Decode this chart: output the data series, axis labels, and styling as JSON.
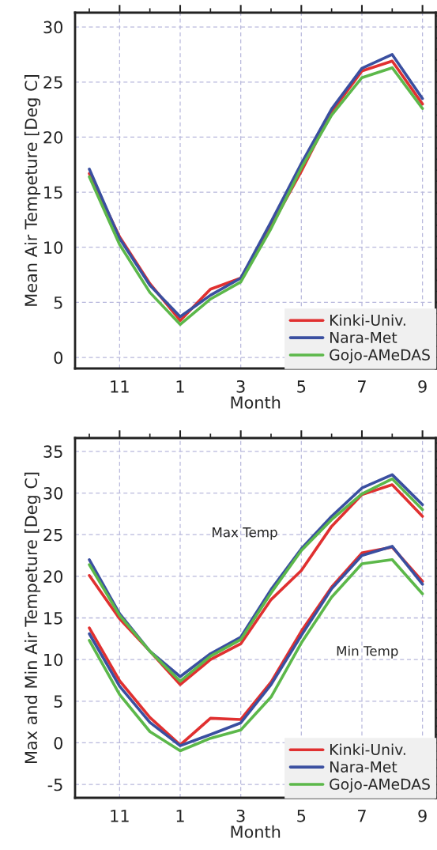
{
  "chart_data": [
    {
      "type": "line",
      "xlabel": "Month",
      "ylabel": "Mean Air Tempeture [Deg C]",
      "categories": [
        null,
        "11",
        null,
        "1",
        null,
        "3",
        null,
        "5",
        null,
        "7",
        null,
        "9"
      ],
      "ylim": [
        -1,
        31.3
      ],
      "yticks": [
        0,
        5,
        10,
        15,
        20,
        25,
        30
      ],
      "grid": true,
      "legend": "bottom right",
      "line_style": "solid",
      "marker": "none",
      "series": [
        {
          "name": "Kinki-Univ.",
          "color": "#e03030",
          "values": [
            16.7,
            10.95,
            6.7,
            3.35,
            6.2,
            7.2,
            11.9,
            16.9,
            22.3,
            26.0,
            26.9,
            23.0
          ]
        },
        {
          "name": "Nara-Met",
          "color": "#3a4fa0",
          "values": [
            17.1,
            10.8,
            6.55,
            3.7,
            5.65,
            7.2,
            12.3,
            17.6,
            22.55,
            26.25,
            27.5,
            23.5
          ]
        },
        {
          "name": "Gojo-AMeDAS",
          "color": "#5cb84a",
          "values": [
            16.4,
            10.25,
            5.9,
            3.0,
            5.3,
            6.85,
            11.7,
            17.2,
            22.0,
            25.4,
            26.3,
            22.6
          ]
        }
      ]
    },
    {
      "type": "line",
      "xlabel": "Month",
      "ylabel": "Max and Min Air Tempeture [Deg C]",
      "categories": [
        null,
        "11",
        null,
        "1",
        null,
        "3",
        null,
        "5",
        null,
        "7",
        null,
        "9"
      ],
      "ylim": [
        -6.6,
        36.6
      ],
      "yticks": [
        -5,
        0,
        5,
        10,
        15,
        20,
        25,
        30,
        35
      ],
      "grid": true,
      "legend": "bottom right",
      "line_style": "solid",
      "marker": "none",
      "annotations": [
        "Max Temp",
        "Min Temp"
      ],
      "series": [
        {
          "name": "Kinki-Univ.",
          "color": "#e03030",
          "values": [
            20.1,
            14.9,
            11.0,
            7.0,
            10.0,
            11.9,
            17.2,
            20.7,
            26.0,
            29.8,
            31.0,
            27.2
          ]
        },
        {
          "name": "Nara-Met",
          "color": "#3a4fa0",
          "values": [
            22.0,
            15.5,
            11.0,
            7.95,
            10.7,
            12.7,
            18.4,
            23.3,
            27.2,
            30.6,
            32.2,
            28.6
          ]
        },
        {
          "name": "Gojo-AMeDAS",
          "color": "#5cb84a",
          "values": [
            21.4,
            15.3,
            11.0,
            7.4,
            10.4,
            12.4,
            18.0,
            23.1,
            26.8,
            29.9,
            31.7,
            28.0
          ]
        },
        {
          "name": "Kinki-Univ.",
          "color": "#e03030",
          "values": [
            13.8,
            7.45,
            3.05,
            -0.25,
            2.95,
            2.8,
            7.3,
            13.4,
            18.7,
            22.8,
            23.5,
            19.4
          ]
        },
        {
          "name": "Nara-Met",
          "color": "#3a4fa0",
          "values": [
            13.1,
            6.8,
            2.45,
            -0.35,
            1.0,
            2.4,
            7.0,
            12.9,
            18.5,
            22.5,
            23.6,
            19.05
          ]
        },
        {
          "name": "Gojo-AMeDAS",
          "color": "#5cb84a",
          "values": [
            12.3,
            5.8,
            1.35,
            -0.95,
            0.55,
            1.55,
            5.5,
            12.0,
            17.5,
            21.5,
            22.0,
            17.9
          ]
        }
      ]
    }
  ]
}
